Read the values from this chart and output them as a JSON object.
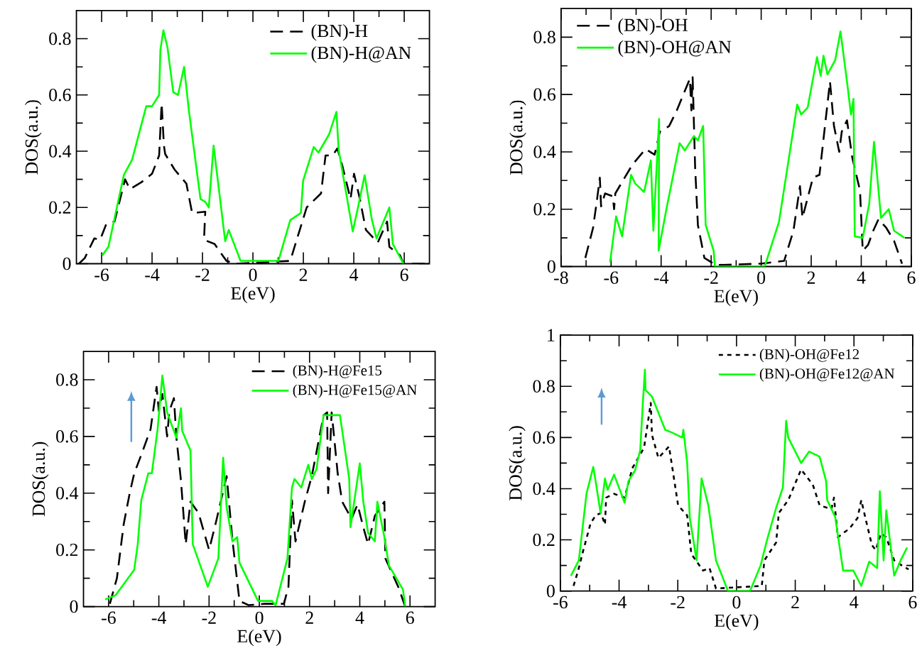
{
  "chart_data": [
    {
      "type": "line",
      "xlabel": "E(eV)",
      "ylabel": "DOS(a.u.)",
      "xlim": [
        -7,
        7
      ],
      "ylim": [
        0,
        0.9
      ],
      "xticks": [
        -6,
        {
          "value": -5,
          "label": null
        },
        -4,
        {
          "value": -3,
          "label": null
        },
        -2,
        {
          "value": -1,
          "label": null
        },
        0,
        {
          "value": 1,
          "label": null
        },
        2,
        {
          "value": 3,
          "label": null
        },
        4,
        {
          "value": 5,
          "label": null
        },
        6
      ],
      "yticks": [
        0,
        {
          "value": 0.1,
          "label": null
        },
        0.2,
        {
          "value": 0.3,
          "label": null
        },
        0.4,
        {
          "value": 0.5,
          "label": null
        },
        0.6,
        {
          "value": 0.7,
          "label": null
        },
        0.8
      ],
      "legend": "top right",
      "series": [
        {
          "name": "(BN)-H",
          "color": "#000000",
          "line_style": "dashed",
          "x": [
            -6.9,
            -6.67,
            -6.29,
            -6.06,
            -5.82,
            -5.49,
            -5.07,
            -4.88,
            -4.42,
            -4.0,
            -3.72,
            -3.62,
            -3.53,
            -3.48,
            -3.11,
            -2.64,
            -2.41,
            -1.89,
            -1.94,
            -1.52,
            -1.05,
            -0.67,
            1.48,
            2.13,
            2.7,
            2.88,
            3.16,
            3.35,
            3.54,
            3.87,
            4.01,
            4.24,
            4.48,
            4.95,
            5.32,
            5.41,
            5.83,
            5.97,
            6.9
          ],
          "values": [
            0,
            0.02,
            0.09,
            0.085,
            0.14,
            0.15,
            0.3,
            0.265,
            0.29,
            0.32,
            0.385,
            0.57,
            0.42,
            0.39,
            0.335,
            0.285,
            0.18,
            0.185,
            0.085,
            0.07,
            0.01,
            0,
            0.01,
            0.2,
            0.25,
            0.385,
            0.385,
            0.41,
            0.35,
            0.23,
            0.32,
            0.23,
            0.12,
            0.075,
            0.15,
            0.06,
            0.03,
            0,
            0
          ]
        },
        {
          "name": "(BN)-H@AN",
          "color": "#00ff00",
          "line_style": "solid",
          "x": [
            -5.97,
            -5.73,
            -5.12,
            -4.79,
            -4.23,
            -4.0,
            -3.72,
            -3.67,
            -3.55,
            -3.39,
            -3.16,
            -2.97,
            -2.73,
            -2.54,
            -2.08,
            -1.89,
            -1.75,
            -1.56,
            -1.1,
            -0.96,
            -0.49,
            1.01,
            1.48,
            1.9,
            1.99,
            2.41,
            2.6,
            3.02,
            3.31,
            3.4,
            3.96,
            4.19,
            4.43,
            4.71,
            4.9,
            5.41,
            5.55,
            5.97
          ],
          "values": [
            0.03,
            0.06,
            0.315,
            0.37,
            0.56,
            0.56,
            0.6,
            0.76,
            0.83,
            0.77,
            0.61,
            0.6,
            0.7,
            0.545,
            0.23,
            0.22,
            0.2,
            0.42,
            0.08,
            0.12,
            0.01,
            0.01,
            0.155,
            0.18,
            0.295,
            0.415,
            0.395,
            0.46,
            0.54,
            0.405,
            0.115,
            0.21,
            0.315,
            0.16,
            0.09,
            0.2,
            0.07,
            0
          ]
        }
      ]
    },
    {
      "type": "line",
      "xlabel": "E(eV)",
      "ylabel": "DOS(a.u.)",
      "xlim": [
        -8,
        6
      ],
      "ylim": [
        0,
        0.9
      ],
      "xticks": [
        -8,
        {
          "value": -7,
          "label": null
        },
        -6,
        {
          "value": -5,
          "label": null
        },
        -4,
        {
          "value": -3,
          "label": null
        },
        -2,
        {
          "value": -1,
          "label": null
        },
        0,
        {
          "value": 1,
          "label": null
        },
        2,
        {
          "value": 3,
          "label": null
        },
        4,
        {
          "value": 5,
          "label": null
        },
        6
      ],
      "yticks": [
        0,
        {
          "value": 0.1,
          "label": null
        },
        0.2,
        {
          "value": 0.3,
          "label": null
        },
        0.4,
        {
          "value": 0.5,
          "label": null
        },
        0.6,
        {
          "value": 0.7,
          "label": null
        },
        0.8
      ],
      "legend": "top left",
      "series": [
        {
          "name": "(BN)-OH",
          "color": "#000000",
          "line_style": "dashed",
          "x": [
            -7.03,
            -6.72,
            -6.56,
            -6.45,
            -6.4,
            -6.24,
            -5.93,
            -5.88,
            -5.83,
            -5.15,
            -4.62,
            -4.26,
            -4.05,
            -3.68,
            -3.37,
            -2.85,
            -2.79,
            -2.74,
            -2.64,
            -2.53,
            -2.27,
            -1.8,
            -0.02,
            0.92,
            1.29,
            1.55,
            1.65,
            2.07,
            2.33,
            2.75,
            2.91,
            3.12,
            3.22,
            3.43,
            3.64,
            3.95,
            4.06,
            4.27,
            4.48,
            4.69,
            5.0,
            5.31,
            5.63
          ],
          "values": [
            0.03,
            0.135,
            0.235,
            0.31,
            0.21,
            0.255,
            0.245,
            0.2,
            0.255,
            0.355,
            0.41,
            0.39,
            0.47,
            0.49,
            0.545,
            0.655,
            0.545,
            0.66,
            0.345,
            0.145,
            0.03,
            0.005,
            0.01,
            0.02,
            0.125,
            0.28,
            0.17,
            0.31,
            0.32,
            0.645,
            0.49,
            0.4,
            0.47,
            0.51,
            0.38,
            0.265,
            0.055,
            0.075,
            0.125,
            0.165,
            0.135,
            0.09,
            0.01
          ]
        },
        {
          "name": "(BN)-OH@AN",
          "color": "#00ff00",
          "line_style": "solid",
          "x": [
            -6.04,
            -5.8,
            -5.56,
            -5.2,
            -5.04,
            -4.68,
            -4.41,
            -4.31,
            -4.08,
            -4.1,
            -3.79,
            -3.26,
            -3.05,
            -2.69,
            -2.53,
            -2.32,
            -2.22,
            -1.9,
            -1.85,
            0.14,
            0.71,
            1.44,
            1.6,
            1.86,
            2.23,
            2.38,
            2.49,
            2.65,
            2.96,
            3.17,
            3.43,
            3.59,
            3.69,
            3.74,
            4.06,
            4.32,
            4.51,
            4.79,
            5.1,
            5.31,
            5.73
          ],
          "values": [
            0.015,
            0.175,
            0.105,
            0.32,
            0.29,
            0.26,
            0.37,
            0.125,
            0.515,
            0.055,
            0.2,
            0.43,
            0.405,
            0.455,
            0.44,
            0.49,
            0.145,
            0.055,
            0,
            0,
            0.155,
            0.565,
            0.53,
            0.555,
            0.73,
            0.665,
            0.735,
            0.67,
            0.72,
            0.82,
            0.645,
            0.53,
            0.585,
            0.105,
            0.1,
            0.22,
            0.435,
            0.17,
            0.2,
            0.125,
            0.1
          ]
        }
      ]
    },
    {
      "type": "line",
      "xlabel": "E(eV)",
      "ylabel": "DOS(a.u.)",
      "xlim": [
        -7,
        7
      ],
      "ylim": [
        0,
        0.9
      ],
      "xticks": [
        -6,
        {
          "value": -5,
          "label": null
        },
        -4,
        {
          "value": -3,
          "label": null
        },
        -2,
        {
          "value": -1,
          "label": null
        },
        0,
        {
          "value": 1,
          "label": null
        },
        2,
        {
          "value": 3,
          "label": null
        },
        4,
        {
          "value": 5,
          "label": null
        },
        6
      ],
      "yticks": [
        0,
        {
          "value": 0.1,
          "label": null
        },
        0.2,
        {
          "value": 0.3,
          "label": null
        },
        0.4,
        {
          "value": 0.5,
          "label": null
        },
        0.6,
        {
          "value": 0.7,
          "label": null
        },
        0.8
      ],
      "legend": "top right",
      "series": [
        {
          "name": "(BN)-H@Fe15",
          "color": "#000000",
          "line_style": "dashed",
          "x": [
            -5.95,
            -5.67,
            -5.4,
            -5.16,
            -4.98,
            -4.7,
            -4.33,
            -4.09,
            -4.0,
            -3.86,
            -3.67,
            -3.58,
            -3.4,
            -3.3,
            -3.12,
            -2.93,
            -2.74,
            -2.42,
            -2.0,
            -1.72,
            -1.3,
            -1.07,
            -0.79,
            -0.42,
            0.23,
            0.98,
            1.16,
            1.3,
            1.44,
            1.81,
            2.09,
            2.56,
            2.7,
            2.74,
            2.88,
            3.12,
            3.3,
            3.67,
            3.91,
            4.14,
            4.33,
            4.6,
            4.98,
            5.02,
            5.53,
            5.81
          ],
          "values": [
            0.01,
            0.1,
            0.29,
            0.4,
            0.47,
            0.535,
            0.625,
            0.775,
            0.69,
            0.75,
            0.6,
            0.69,
            0.735,
            0.595,
            0.445,
            0.22,
            0.37,
            0.33,
            0.2,
            0.3,
            0.46,
            0.235,
            0.02,
            0.005,
            0.01,
            0.01,
            0.07,
            0.375,
            0.23,
            0.37,
            0.46,
            0.675,
            0.685,
            0.4,
            0.685,
            0.47,
            0.37,
            0.31,
            0.36,
            0.28,
            0.22,
            0.32,
            0.37,
            0.17,
            0.07,
            0
          ]
        },
        {
          "name": "(BN)-H@Fe15@AN",
          "color": "#00ff00",
          "line_style": "solid",
          "x": [
            -6.14,
            -5.72,
            -4.98,
            -4.84,
            -4.7,
            -4.42,
            -4.28,
            -4.05,
            -3.86,
            -3.67,
            -3.3,
            -3.12,
            -3.07,
            -2.74,
            -2.65,
            -2.05,
            -1.63,
            -1.44,
            -1.3,
            -1.07,
            -0.88,
            -0.79,
            -0.05,
            0.51,
            0.65,
            1.12,
            1.3,
            1.4,
            1.67,
            1.95,
            2.09,
            2.28,
            2.56,
            3.21,
            3.58,
            3.63,
            4.0,
            4.14,
            4.33,
            4.6,
            4.7,
            4.98,
            5.16,
            5.72,
            5.81
          ],
          "values": [
            0.025,
            0.04,
            0.13,
            0.22,
            0.375,
            0.47,
            0.47,
            0.625,
            0.815,
            0.685,
            0.595,
            0.7,
            0.62,
            0.55,
            0.22,
            0.07,
            0.17,
            0.525,
            0.35,
            0.23,
            0.245,
            0.155,
            0.02,
            0.02,
            0.005,
            0.17,
            0.42,
            0.45,
            0.42,
            0.5,
            0.45,
            0.485,
            0.675,
            0.675,
            0.45,
            0.28,
            0.505,
            0.37,
            0.26,
            0.23,
            0.37,
            0.245,
            0.145,
            0.06,
            0
          ]
        }
      ]
    },
    {
      "type": "line",
      "xlabel": "E(eV)",
      "ylabel": "DOS(a.u.)",
      "xlim": [
        -6,
        6
      ],
      "ylim": [
        0,
        1
      ],
      "xticks": [
        -6,
        {
          "value": -5,
          "label": null
        },
        -4,
        {
          "value": -3,
          "label": null
        },
        -2,
        {
          "value": -1,
          "label": null
        },
        0,
        {
          "value": 1,
          "label": null
        },
        2,
        {
          "value": 3,
          "label": null
        },
        4,
        {
          "value": 5,
          "label": null
        },
        6
      ],
      "yticks": [
        0,
        {
          "value": 0.1,
          "label": null
        },
        0.2,
        {
          "value": 0.3,
          "label": null
        },
        0.4,
        {
          "value": 0.5,
          "label": null
        },
        0.6,
        {
          "value": 0.7,
          "label": null
        },
        0.8,
        {
          "value": 0.9,
          "label": null
        },
        1
      ],
      "legend": "top right",
      "series": [
        {
          "name": "(BN)-OH@Fe12",
          "color": "#000000",
          "line_style": "dotted",
          "x": [
            -5.55,
            -5.37,
            -5.24,
            -4.97,
            -4.8,
            -4.62,
            -4.48,
            -4.44,
            -4.17,
            -3.81,
            -3.55,
            -3.15,
            -2.92,
            -2.88,
            -2.66,
            -2.3,
            -2.17,
            -1.99,
            -1.68,
            -1.54,
            -1.14,
            -0.92,
            -0.7,
            0.86,
            0.95,
            1.35,
            1.44,
            1.76,
            2.2,
            2.6,
            2.83,
            3.23,
            3.32,
            3.45,
            3.85,
            4.12,
            4.25,
            4.39,
            4.61,
            4.74,
            4.92,
            5.1,
            5.37,
            5.63,
            5.86
          ],
          "values": [
            0.02,
            0.09,
            0.15,
            0.265,
            0.295,
            0.305,
            0.26,
            0.365,
            0.38,
            0.365,
            0.48,
            0.56,
            0.735,
            0.61,
            0.52,
            0.565,
            0.47,
            0.335,
            0.295,
            0.145,
            0.08,
            0.09,
            0.01,
            0.02,
            0.12,
            0.19,
            0.305,
            0.355,
            0.475,
            0.415,
            0.335,
            0.32,
            0.365,
            0.21,
            0.245,
            0.285,
            0.355,
            0.285,
            0.18,
            0.16,
            0.225,
            0.21,
            0.12,
            0.1,
            0.085
          ]
        },
        {
          "name": "(BN)-OH@Fe12@AN",
          "color": "#00ff00",
          "line_style": "solid",
          "x": [
            -5.64,
            -5.37,
            -5.11,
            -4.88,
            -4.8,
            -4.63,
            -4.48,
            -4.39,
            -4.17,
            -3.81,
            -3.68,
            -3.46,
            -3.28,
            -3.19,
            -3.12,
            -3.1,
            -2.88,
            -2.43,
            -2.21,
            -1.85,
            -1.81,
            -1.68,
            -1.59,
            -1.36,
            -1.23,
            -1.19,
            -0.96,
            -0.7,
            -0.29,
            0.46,
            0.82,
            1.04,
            1.35,
            1.58,
            1.69,
            1.76,
            2.2,
            2.47,
            2.83,
            3.05,
            3.09,
            3.36,
            3.63,
            3.98,
            4.25,
            4.52,
            4.79,
            4.88,
            5.01,
            5.1,
            5.37,
            5.59,
            5.81
          ],
          "values": [
            0.06,
            0.12,
            0.38,
            0.485,
            0.43,
            0.305,
            0.44,
            0.395,
            0.455,
            0.345,
            0.43,
            0.47,
            0.55,
            0.735,
            0.865,
            0.785,
            0.76,
            0.63,
            0.62,
            0.6,
            0.63,
            0.5,
            0.285,
            0.12,
            0.365,
            0.44,
            0.335,
            0.12,
            0,
            0,
            0.1,
            0.2,
            0.325,
            0.405,
            0.665,
            0.6,
            0.5,
            0.545,
            0.525,
            0.43,
            0.355,
            0.29,
            0.08,
            0.08,
            0.02,
            0.115,
            0.09,
            0.39,
            0.12,
            0.315,
            0.06,
            0.12,
            0.17
          ]
        }
      ]
    }
  ]
}
